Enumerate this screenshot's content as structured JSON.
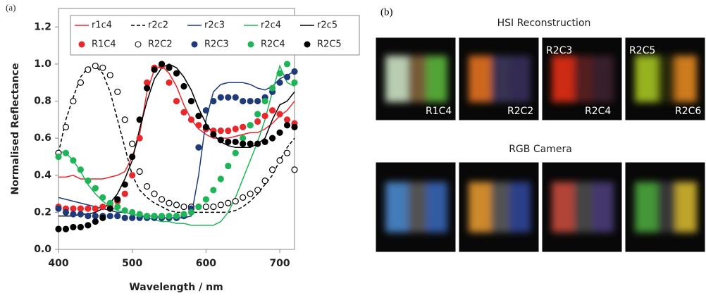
{
  "chart_data": {
    "type": "line",
    "panel_label": "(a)",
    "xlabel": "Wavelength  /  nm",
    "ylabel": "Normalised Reflectance",
    "x": [
      400,
      410,
      420,
      430,
      440,
      450,
      460,
      470,
      480,
      490,
      500,
      510,
      520,
      530,
      540,
      550,
      560,
      570,
      580,
      590,
      600,
      610,
      620,
      630,
      640,
      650,
      660,
      670,
      680,
      690,
      700,
      710,
      720
    ],
    "xlim": [
      400,
      720
    ],
    "xticks": [
      400,
      500,
      600,
      700
    ],
    "ylim": [
      0,
      1.3
    ],
    "yticks": [
      {
        "value": 0,
        "label": "0.0"
      },
      {
        "value": 0.2,
        "label": "0.2"
      },
      {
        "value": 0.4,
        "label": "0.4"
      },
      {
        "value": 0.6,
        "label": "0.6"
      },
      {
        "value": 0.8,
        "label": "0.8"
      },
      {
        "value": 1,
        "label": "1.0"
      },
      {
        "value": 1.2,
        "label": "1.2"
      }
    ],
    "series": [
      {
        "name": "r1c4",
        "color": "#e8282b",
        "style": "solid",
        "values": [
          0.39,
          0.39,
          0.4,
          0.38,
          0.38,
          0.38,
          0.38,
          0.39,
          0.4,
          0.42,
          0.5,
          0.62,
          0.85,
          0.97,
          0.99,
          0.95,
          0.88,
          0.78,
          0.7,
          0.65,
          0.62,
          0.6,
          0.6,
          0.6,
          0.61,
          0.62,
          0.63,
          0.63,
          0.65,
          0.68,
          0.72,
          0.75,
          0.8
        ]
      },
      {
        "name": "r2c2",
        "color": "#000000",
        "style": "dashed",
        "values": [
          0.52,
          0.7,
          0.82,
          0.93,
          0.98,
          0.99,
          0.95,
          0.85,
          0.7,
          0.55,
          0.4,
          0.32,
          0.28,
          0.25,
          0.23,
          0.21,
          0.2,
          0.2,
          0.2,
          0.2,
          0.2,
          0.2,
          0.2,
          0.2,
          0.21,
          0.23,
          0.26,
          0.3,
          0.35,
          0.4,
          0.48,
          0.55,
          0.6
        ]
      },
      {
        "name": "r2c3",
        "color": "#1f3a7a",
        "style": "solid",
        "values": [
          0.28,
          0.27,
          0.26,
          0.25,
          0.24,
          0.23,
          0.22,
          0.21,
          0.2,
          0.2,
          0.19,
          0.18,
          0.18,
          0.18,
          0.17,
          0.17,
          0.17,
          0.17,
          0.18,
          0.4,
          0.7,
          0.85,
          0.89,
          0.9,
          0.9,
          0.9,
          0.89,
          0.87,
          0.86,
          0.88,
          0.92,
          0.94,
          0.96
        ]
      },
      {
        "name": "r2c4",
        "color": "#1fb457",
        "style": "solid",
        "values": [
          0.53,
          0.52,
          0.48,
          0.42,
          0.35,
          0.3,
          0.26,
          0.23,
          0.21,
          0.2,
          0.19,
          0.18,
          0.17,
          0.16,
          0.15,
          0.15,
          0.14,
          0.14,
          0.13,
          0.13,
          0.13,
          0.13,
          0.15,
          0.2,
          0.28,
          0.38,
          0.48,
          0.58,
          0.7,
          0.85,
          0.99,
          0.9,
          0.88
        ]
      },
      {
        "name": "r2c5",
        "color": "#000000",
        "style": "solid",
        "values": [
          0.18,
          0.18,
          0.18,
          0.19,
          0.19,
          0.2,
          0.22,
          0.25,
          0.3,
          0.38,
          0.48,
          0.65,
          0.8,
          0.92,
          0.98,
          1.0,
          0.98,
          0.93,
          0.86,
          0.76,
          0.68,
          0.62,
          0.58,
          0.56,
          0.55,
          0.55,
          0.55,
          0.57,
          0.6,
          0.7,
          0.78,
          0.8,
          0.85
        ]
      },
      {
        "name": "R1C4",
        "color": "#e8282b",
        "style": "marker",
        "values": [
          0.23,
          0.22,
          0.22,
          0.22,
          0.22,
          0.22,
          0.23,
          0.24,
          0.26,
          0.3,
          0.4,
          0.6,
          0.9,
          0.98,
          0.99,
          0.9,
          0.8,
          0.74,
          0.7,
          0.67,
          0.65,
          0.64,
          0.64,
          0.64,
          0.65,
          0.66,
          0.67,
          0.69,
          0.72,
          0.75,
          0.73,
          0.7,
          0.68
        ]
      },
      {
        "name": "R2C2",
        "color": "#000000",
        "style": "open-marker",
        "values": [
          0.52,
          0.66,
          0.8,
          0.9,
          0.97,
          0.99,
          0.98,
          0.94,
          0.85,
          0.7,
          0.57,
          0.42,
          0.34,
          0.3,
          0.27,
          0.25,
          0.24,
          0.23,
          0.23,
          0.23,
          0.23,
          0.23,
          0.24,
          0.25,
          0.26,
          0.28,
          0.3,
          0.32,
          0.37,
          0.43,
          0.48,
          0.52,
          0.43
        ]
      },
      {
        "name": "R2C3",
        "color": "#1f3a7a",
        "style": "marker",
        "values": [
          0.22,
          0.2,
          0.19,
          0.19,
          0.18,
          0.18,
          0.18,
          0.18,
          0.18,
          0.17,
          0.17,
          0.17,
          0.17,
          0.17,
          0.17,
          0.17,
          0.17,
          0.18,
          0.22,
          0.55,
          0.75,
          0.8,
          0.82,
          0.82,
          0.82,
          0.8,
          0.8,
          0.8,
          0.82,
          0.85,
          0.9,
          0.93,
          0.96
        ]
      },
      {
        "name": "R2C4",
        "color": "#1fb457",
        "style": "marker",
        "values": [
          0.5,
          0.52,
          0.48,
          0.43,
          0.37,
          0.33,
          0.28,
          0.25,
          0.23,
          0.21,
          0.2,
          0.19,
          0.18,
          0.18,
          0.18,
          0.18,
          0.18,
          0.19,
          0.2,
          0.23,
          0.27,
          0.32,
          0.38,
          0.45,
          0.52,
          0.6,
          0.67,
          0.73,
          0.8,
          0.87,
          0.95,
          1.0,
          0.9
        ]
      },
      {
        "name": "R2C5",
        "color": "#000000",
        "style": "marker",
        "values": [
          0.11,
          0.11,
          0.12,
          0.12,
          0.13,
          0.15,
          0.17,
          0.22,
          0.27,
          0.35,
          0.5,
          0.7,
          0.87,
          0.97,
          1.0,
          0.98,
          0.95,
          0.88,
          0.8,
          0.72,
          0.66,
          0.62,
          0.59,
          0.58,
          0.58,
          0.57,
          0.57,
          0.57,
          0.58,
          0.6,
          0.63,
          0.67,
          0.66
        ]
      }
    ]
  },
  "panel_b": {
    "label": "(b)",
    "top_heading": "HSI Reconstruction",
    "bottom_heading": "RGB Camera",
    "image_labels": [
      "R1C4",
      "R2C2",
      "R2C3",
      "R2C4",
      "R2C5",
      "R2C6"
    ]
  }
}
